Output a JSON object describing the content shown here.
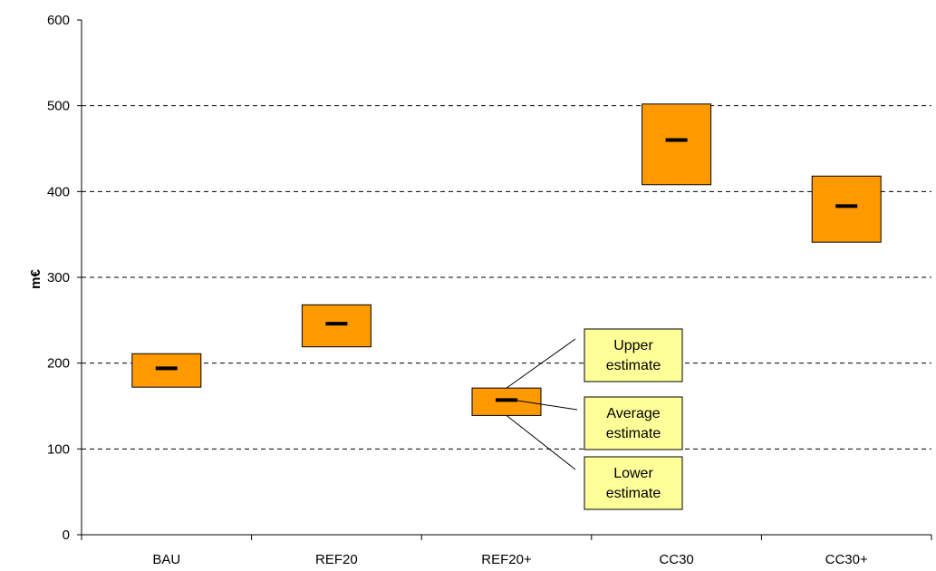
{
  "chart_data": {
    "type": "floating-range",
    "ylabel": "m€",
    "ylim": [
      0,
      600
    ],
    "yticks": [
      0,
      100,
      200,
      300,
      400,
      500,
      600
    ],
    "grid": "horizontal dashed",
    "categories": [
      "BAU",
      "REF20",
      "REF20+",
      "CC30",
      "CC30+"
    ],
    "lower": [
      172,
      219,
      139,
      408,
      341
    ],
    "average": [
      194,
      246,
      157,
      460,
      383
    ],
    "upper": [
      211,
      268,
      171,
      502,
      418
    ],
    "colors": {
      "box": "#FF9900",
      "mark": "#000000",
      "note_fill": "#FFFF99"
    },
    "annotations": {
      "category": "REF20+",
      "upper": [
        "Upper",
        "estimate"
      ],
      "average": [
        "Average",
        "estimate"
      ],
      "lower": [
        "Lower",
        "estimate"
      ]
    }
  }
}
